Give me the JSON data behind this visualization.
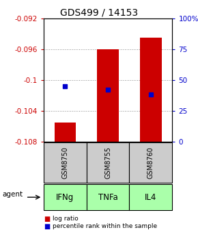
{
  "title": "GDS499 / 14153",
  "ylim_left": [
    -0.108,
    -0.092
  ],
  "ylim_right": [
    0,
    100
  ],
  "yticks_left": [
    -0.108,
    -0.104,
    -0.1,
    -0.096,
    -0.092
  ],
  "ytick_labels_left": [
    "-0.108",
    "-0.104",
    "-0.1",
    "-0.096",
    "-0.092"
  ],
  "yticks_right": [
    0,
    25,
    50,
    75,
    100
  ],
  "ytick_labels_right": [
    "0",
    "25",
    "50",
    "75",
    "100%"
  ],
  "bar_positions": [
    1,
    2,
    3
  ],
  "bar_tops": [
    -0.1055,
    -0.096,
    -0.0945
  ],
  "bar_bottom": -0.108,
  "bar_color": "#cc0000",
  "bar_width": 0.5,
  "percentile_values": [
    45,
    42,
    38
  ],
  "percentile_color": "#0000cc",
  "gsm_labels": [
    "GSM8750",
    "GSM8755",
    "GSM8760"
  ],
  "agent_labels": [
    "IFNg",
    "TNFa",
    "IL4"
  ],
  "agent_bg_color": "#aaffaa",
  "gsm_bg_color": "#cccccc",
  "legend_log_color": "#cc0000",
  "legend_pct_color": "#0000cc",
  "grid_color": "#888888",
  "title_fontsize": 10,
  "tick_fontsize": 7.5,
  "agent_fontsize": 8.5,
  "gsm_fontsize": 7,
  "left_tick_color": "#cc0000",
  "right_tick_color": "#0000cc"
}
